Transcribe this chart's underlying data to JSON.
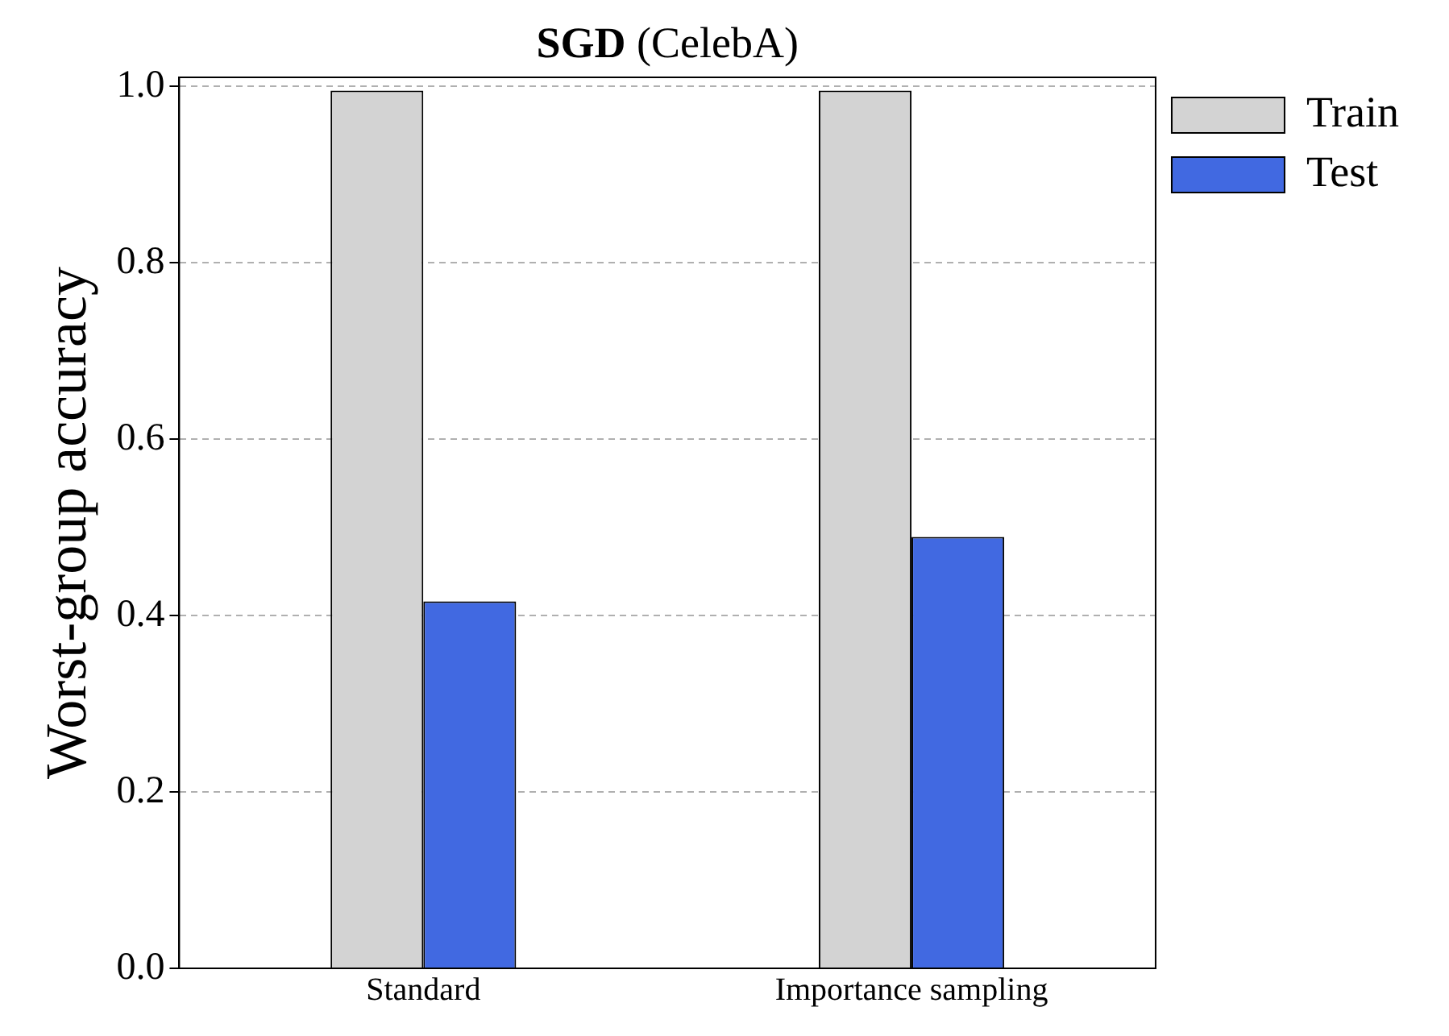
{
  "chart_data": {
    "type": "bar",
    "title": "SGD (CelebA)",
    "ylabel": "Worst-group accuracy",
    "categories": [
      "Standard",
      "Importance sampling"
    ],
    "series": [
      {
        "name": "Train",
        "color": "#d3d3d3",
        "values": [
          0.995,
          0.995
        ]
      },
      {
        "name": "Test",
        "color": "#4169e1",
        "values": [
          0.416,
          0.489
        ]
      }
    ],
    "ylim": [
      0,
      1.01
    ],
    "yticks": [
      {
        "value": 0,
        "label": "0.0"
      },
      {
        "value": 0.2,
        "label": "0.2"
      },
      {
        "value": 0.4,
        "label": "0.4"
      },
      {
        "value": 0.6,
        "label": "0.6"
      },
      {
        "value": 0.8,
        "label": "0.8"
      },
      {
        "value": 1,
        "label": "1.0"
      }
    ],
    "grid": "y",
    "legend": "top right"
  }
}
